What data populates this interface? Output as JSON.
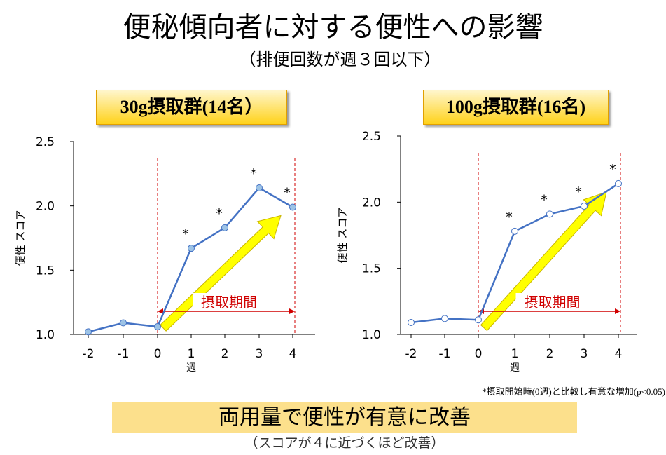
{
  "title": "便秘傾向者に対する便性への影響",
  "subtitle": "（排便回数が週３回以下）",
  "chart_data": [
    {
      "type": "line",
      "badge": "30g摂取群(14名）",
      "ylabel": "便性 スコア",
      "xlabel": "週",
      "x": [
        -2,
        -1,
        0,
        1,
        2,
        3,
        4
      ],
      "values": [
        1.02,
        1.09,
        1.06,
        1.67,
        1.83,
        2.14,
        1.99
      ],
      "significant": [
        false,
        false,
        false,
        true,
        true,
        true,
        true
      ],
      "ylim": [
        1.0,
        2.5
      ],
      "yticks": [
        "1.0",
        "1.5",
        "2.0",
        "2.5"
      ],
      "xticks": [
        "-2",
        "-1",
        "0",
        "1",
        "2",
        "3",
        "4"
      ],
      "marker": "*",
      "period_label": "摂取期間",
      "period_range": [
        0,
        4
      ],
      "line_color": "#4472c4",
      "marker_fill": "#9dc3e6",
      "arrow_color": "#ffff00"
    },
    {
      "type": "line",
      "badge": "100g摂取群(16名)",
      "ylabel": "便性 スコア",
      "xlabel": "週",
      "x": [
        -2,
        -1,
        0,
        1,
        2,
        3,
        4
      ],
      "values": [
        1.09,
        1.12,
        1.11,
        1.78,
        1.91,
        1.97,
        2.14
      ],
      "significant": [
        false,
        false,
        false,
        true,
        true,
        true,
        true
      ],
      "ylim": [
        1.0,
        2.5
      ],
      "yticks": [
        "1.0",
        "1.5",
        "2.0",
        "2.5"
      ],
      "xticks": [
        "-2",
        "-1",
        "0",
        "1",
        "2",
        "3",
        "4"
      ],
      "marker": "*",
      "period_label": "摂取期間",
      "period_range": [
        0,
        4
      ],
      "line_color": "#4472c4",
      "marker_fill": "#ffffff",
      "arrow_color": "#ffff00"
    }
  ],
  "footnote": "*摂取開始時(0週)と比較し有意な増加(p<0.05)",
  "conclusion": "両用量で便性が有意に改善",
  "note": "（スコアが４に近づくほど改善）"
}
